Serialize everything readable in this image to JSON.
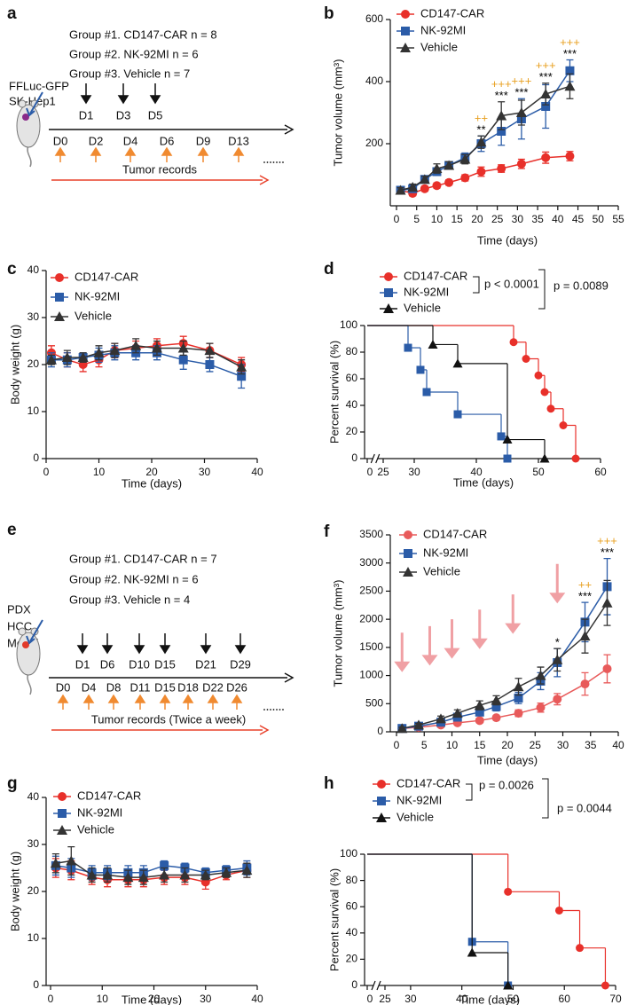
{
  "schematics": [
    {
      "panel": "a",
      "groups": [
        "Group #1. CD147-CAR n = 8",
        "Group #2. NK-92MI n = 6",
        "Group #3. Vehicle n = 7"
      ],
      "side_labels": [
        "FFLuc-GFP",
        "SK-Hep1"
      ],
      "treatments": [
        "D1",
        "D3",
        "D5"
      ],
      "records": [
        "D0",
        "D2",
        "D4",
        "D6",
        "D9",
        "D13"
      ],
      "records_label": "Tumor records"
    },
    {
      "panel": "e",
      "groups": [
        "Group #1. CD147-CAR n = 7",
        "Group #2. NK-92MI n = 6",
        "Group #3. Vehicle n = 4"
      ],
      "side_labels": [
        "PDX",
        "HCC",
        "Model"
      ],
      "treatments": [
        "D1",
        "D6",
        "D10",
        "D15",
        "D21",
        "D29"
      ],
      "records": [
        "D0",
        "D4",
        "D8",
        "D11",
        "D15",
        "D18",
        "D22",
        "D26"
      ],
      "records_label": "Tumor records (Twice a week)"
    }
  ],
  "chart_data": [
    {
      "panel": "b",
      "type": "line",
      "ylabel": "Tumor volume (mm³)",
      "xlabel": "Time (days)",
      "x": [
        1,
        4,
        7,
        10,
        13,
        17,
        21,
        26,
        31,
        37,
        43
      ],
      "xlim": [
        0,
        55
      ],
      "xticks": [
        0,
        5,
        10,
        15,
        20,
        25,
        30,
        35,
        40,
        45,
        50,
        55
      ],
      "ylim": [
        0,
        600
      ],
      "yticks": [
        200,
        400,
        600
      ],
      "series": [
        {
          "name": "CD147-CAR",
          "color": "#e8302a",
          "marker": "circle",
          "values": [
            50,
            40,
            55,
            65,
            75,
            90,
            110,
            120,
            135,
            155,
            160
          ],
          "errors": [
            8,
            8,
            8,
            8,
            8,
            10,
            15,
            12,
            15,
            18,
            15
          ]
        },
        {
          "name": "NK-92MI",
          "color": "#2b5ca8",
          "marker": "square",
          "values": [
            50,
            55,
            85,
            110,
            130,
            155,
            200,
            240,
            280,
            320,
            435
          ],
          "errors": [
            8,
            10,
            10,
            12,
            12,
            15,
            25,
            45,
            65,
            70,
            35
          ]
        },
        {
          "name": "Vehicle",
          "color": "#333333",
          "marker": "triangle",
          "values": [
            50,
            60,
            85,
            120,
            130,
            150,
            205,
            290,
            300,
            360,
            385
          ],
          "errors": [
            8,
            10,
            10,
            15,
            12,
            15,
            20,
            45,
            40,
            35,
            40
          ]
        }
      ],
      "annotations": [
        {
          "x": 21,
          "stars": "**",
          "plus": "++"
        },
        {
          "x": 26,
          "stars": "***",
          "plus": "+++"
        },
        {
          "x": 31,
          "stars": "***",
          "plus": "+++"
        },
        {
          "x": 37,
          "stars": "***",
          "plus": "+++"
        },
        {
          "x": 43,
          "stars": "***",
          "plus": "+++"
        }
      ],
      "star_color": "#000000",
      "plus_color": "#e8a020"
    },
    {
      "panel": "c",
      "type": "line",
      "ylabel": "Body weight (g)",
      "xlabel": "Time (days)",
      "x": [
        1,
        4,
        7,
        10,
        13,
        17,
        21,
        26,
        31,
        37
      ],
      "xlim": [
        0,
        40
      ],
      "xticks": [
        0,
        10,
        20,
        30,
        40
      ],
      "ylim": [
        0,
        40
      ],
      "yticks": [
        0,
        10,
        20,
        30,
        40
      ],
      "series": [
        {
          "name": "CD147-CAR",
          "color": "#e8302a",
          "marker": "circle",
          "values": [
            22.5,
            21,
            20,
            21,
            23,
            23.5,
            24,
            24.5,
            23,
            20
          ],
          "errors": [
            1.5,
            1.5,
            1.5,
            1.5,
            1.5,
            1.5,
            1.5,
            1.5,
            1.5,
            1.5
          ]
        },
        {
          "name": "NK-92MI",
          "color": "#2b5ca8",
          "marker": "square",
          "values": [
            21,
            21,
            21.5,
            22,
            22.5,
            22.5,
            22.5,
            21,
            20,
            17.5
          ],
          "errors": [
            1.5,
            1.5,
            1,
            1.5,
            1.5,
            1.5,
            1.5,
            2,
            1.5,
            2.5
          ]
        },
        {
          "name": "Vehicle",
          "color": "#333333",
          "marker": "triangle",
          "values": [
            21,
            21.5,
            21.5,
            22.5,
            23,
            24,
            23.5,
            23.5,
            23,
            19.5
          ],
          "errors": [
            1,
            1.5,
            1,
            1.5,
            1.5,
            1.5,
            1.5,
            1.5,
            1.5,
            1.5
          ]
        }
      ]
    },
    {
      "panel": "d",
      "type": "step",
      "ylabel": "Percent survival (%)",
      "xlabel": "Time (days)",
      "xlim": [
        0,
        60
      ],
      "xbreak": [
        0,
        25
      ],
      "xticks": [
        0,
        25,
        30,
        40,
        50,
        60
      ],
      "ylim": [
        0,
        100
      ],
      "yticks": [
        0,
        20,
        40,
        60,
        80,
        100
      ],
      "series": [
        {
          "name": "CD147-CAR",
          "color": "#e8302a",
          "marker": "circle",
          "x": [
            0,
            46,
            48,
            50,
            51,
            52,
            54,
            56
          ],
          "values": [
            100,
            87.5,
            75,
            62.5,
            50,
            37.5,
            25,
            0
          ]
        },
        {
          "name": "NK-92MI",
          "color": "#2b5ca8",
          "marker": "square",
          "x": [
            0,
            29,
            31,
            32,
            37,
            44,
            45
          ],
          "values": [
            100,
            83.3,
            66.7,
            50,
            33.3,
            16.7,
            0
          ]
        },
        {
          "name": "Vehicle",
          "color": "#111111",
          "marker": "triangle",
          "x": [
            0,
            33,
            37,
            45,
            51
          ],
          "values": [
            100,
            85.7,
            71.4,
            14.3,
            0
          ]
        }
      ],
      "pvalues": [
        "p < 0.0001",
        "p = 0.0089"
      ]
    },
    {
      "panel": "f",
      "type": "line",
      "ylabel": "Tumor volume (mm³)",
      "xlabel": "Time (days)",
      "x": [
        1,
        4,
        8,
        11,
        15,
        18,
        22,
        26,
        29,
        34,
        38
      ],
      "xlim": [
        0,
        40
      ],
      "xticks": [
        0,
        5,
        10,
        15,
        20,
        25,
        30,
        35,
        40
      ],
      "ylim": [
        0,
        3500
      ],
      "yticks": [
        0,
        500,
        1000,
        1500,
        2000,
        2500,
        3000,
        3500
      ],
      "series": [
        {
          "name": "CD147-CAR",
          "color": "#e85a5a",
          "marker": "circle",
          "values": [
            60,
            80,
            120,
            160,
            200,
            250,
            330,
            430,
            580,
            850,
            1120
          ],
          "errors": [
            20,
            20,
            30,
            30,
            40,
            40,
            60,
            80,
            100,
            200,
            250
          ]
        },
        {
          "name": "NK-92MI",
          "color": "#2b5ca8",
          "marker": "square",
          "values": [
            60,
            100,
            170,
            260,
            350,
            450,
            600,
            900,
            1230,
            1950,
            2580
          ],
          "errors": [
            20,
            30,
            40,
            50,
            60,
            80,
            100,
            150,
            250,
            350,
            500
          ]
        },
        {
          "name": "Vehicle",
          "color": "#333333",
          "marker": "triangle",
          "values": [
            60,
            120,
            230,
            330,
            470,
            560,
            800,
            1000,
            1280,
            1700,
            2290
          ],
          "errors": [
            20,
            30,
            50,
            60,
            80,
            80,
            150,
            150,
            200,
            300,
            400
          ]
        }
      ],
      "annotations": [
        {
          "x": 29,
          "stars": "*"
        },
        {
          "x": 34,
          "stars": "***",
          "plus": "++"
        },
        {
          "x": 38,
          "stars": "***",
          "plus": "+++"
        }
      ],
      "star_color": "#000000",
      "plus_color": "#e8a020",
      "treatment_days": [
        1,
        6,
        10,
        15,
        21,
        29
      ],
      "treatment_color": "#f0a0a4"
    },
    {
      "panel": "g",
      "type": "line",
      "ylabel": "Body weight (g)",
      "xlabel": "Time (days)",
      "x": [
        1,
        4,
        8,
        11,
        15,
        18,
        22,
        26,
        30,
        34,
        38
      ],
      "xlim": [
        0,
        40
      ],
      "xticks": [
        0,
        10,
        20,
        30,
        40
      ],
      "ylim": [
        0,
        40
      ],
      "yticks": [
        0,
        10,
        20,
        30,
        40
      ],
      "series": [
        {
          "name": "CD147-CAR",
          "color": "#e8302a",
          "marker": "circle",
          "values": [
            25,
            24.5,
            23,
            22.5,
            22.5,
            22.5,
            23,
            23,
            22,
            23.5,
            24.5
          ],
          "errors": [
            2,
            2,
            1.5,
            1.5,
            1.5,
            1.5,
            1.5,
            1.5,
            1.5,
            1,
            1.5
          ]
        },
        {
          "name": "NK-92MI",
          "color": "#2b5ca8",
          "marker": "square",
          "values": [
            25.5,
            25,
            24,
            24,
            24,
            24,
            25.5,
            25,
            24,
            24.5,
            25
          ],
          "errors": [
            2,
            2,
            1.5,
            1.5,
            1.5,
            1.5,
            1,
            1,
            1,
            1,
            1.5
          ]
        },
        {
          "name": "Vehicle",
          "color": "#333333",
          "marker": "triangle",
          "values": [
            26,
            26.5,
            23.5,
            23.5,
            23,
            23,
            23.5,
            23.5,
            23.5,
            24,
            24.5
          ],
          "errors": [
            2,
            3,
            1.5,
            1.5,
            1.5,
            1.5,
            1.5,
            1.5,
            1,
            1,
            1.5
          ]
        }
      ]
    },
    {
      "panel": "h",
      "type": "step",
      "ylabel": "Percent survival (%)",
      "xlabel": "Time (days)",
      "xlim": [
        0,
        70
      ],
      "xbreak": [
        0,
        25
      ],
      "xticks": [
        0,
        25,
        30,
        40,
        50,
        60,
        70
      ],
      "ylim": [
        0,
        100
      ],
      "yticks": [
        0,
        20,
        40,
        60,
        80,
        100
      ],
      "series": [
        {
          "name": "CD147-CAR",
          "color": "#e8302a",
          "marker": "circle",
          "x": [
            0,
            49,
            59,
            63,
            68
          ],
          "values": [
            100,
            71.4,
            57.1,
            28.6,
            0
          ]
        },
        {
          "name": "NK-92MI",
          "color": "#2b5ca8",
          "marker": "square",
          "x": [
            0,
            42,
            49
          ],
          "values": [
            100,
            33.3,
            0
          ]
        },
        {
          "name": "Vehicle",
          "color": "#111111",
          "marker": "triangle",
          "x": [
            0,
            42,
            49
          ],
          "values": [
            100,
            25,
            0
          ]
        }
      ],
      "pvalues": [
        "p = 0.0026",
        "p = 0.0044"
      ]
    }
  ]
}
